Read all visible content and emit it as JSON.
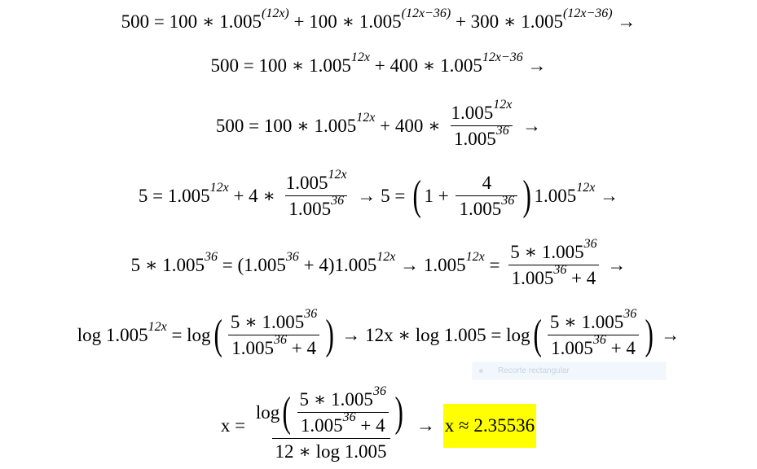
{
  "equations": [
    [
      {
        "t": "500 = 100 ∗ 1.005"
      },
      {
        "sup": "(12x)"
      },
      {
        "t": " + 100 ∗ 1.005"
      },
      {
        "sup": "(12x−36)"
      },
      {
        "t": " + 300 ∗ 1.005"
      },
      {
        "sup": "(12x−36)"
      },
      {
        "t": " →"
      }
    ],
    [
      {
        "t": "500 = 100 ∗ 1.005"
      },
      {
        "sup": "12x"
      },
      {
        "t": " + 400 ∗ 1.005"
      },
      {
        "sup": "12x−36"
      },
      {
        "t": " →"
      }
    ],
    [
      {
        "t": "500 = 100 ∗ 1.005"
      },
      {
        "sup": "12x"
      },
      {
        "t": " + 400 ∗ "
      },
      {
        "frac": {
          "num": [
            {
              "t": "1.005"
            },
            {
              "sup": "12x"
            }
          ],
          "den": [
            {
              "t": "1.005"
            },
            {
              "sup": "36"
            }
          ]
        }
      },
      {
        "t": " →"
      }
    ],
    [
      {
        "t": "5 = 1.005"
      },
      {
        "sup": "12x"
      },
      {
        "t": " + 4 ∗ "
      },
      {
        "frac": {
          "num": [
            {
              "t": "1.005"
            },
            {
              "sup": "12x"
            }
          ],
          "den": [
            {
              "t": "1.005"
            },
            {
              "sup": "36"
            }
          ]
        }
      },
      {
        "t": " → 5 = "
      },
      {
        "paren": [
          {
            "t": "1 + "
          },
          {
            "frac": {
              "num": [
                {
                  "t": "4"
                }
              ],
              "den": [
                {
                  "t": "1.005"
                },
                {
                  "sup": "36"
                }
              ]
            }
          }
        ]
      },
      {
        "t": "1.005"
      },
      {
        "sup": "12x"
      },
      {
        "t": " →"
      }
    ],
    [
      {
        "t": "5 ∗ 1.005"
      },
      {
        "sup": "36"
      },
      {
        "t": " = (1.005"
      },
      {
        "sup": "36"
      },
      {
        "t": " + 4)1.005"
      },
      {
        "sup": "12x"
      },
      {
        "t": " → 1.005"
      },
      {
        "sup": "12x"
      },
      {
        "t": " = "
      },
      {
        "frac": {
          "num": [
            {
              "t": "5 ∗ 1.005"
            },
            {
              "sup": "36"
            }
          ],
          "den": [
            {
              "t": "1.005"
            },
            {
              "sup": "36"
            },
            {
              "t": " + 4"
            }
          ]
        }
      },
      {
        "t": " →"
      }
    ],
    [
      {
        "t": "log 1.005"
      },
      {
        "sup": "12x"
      },
      {
        "t": " = log"
      },
      {
        "paren": [
          {
            "frac": {
              "num": [
                {
                  "t": "5 ∗ 1.005"
                },
                {
                  "sup": "36"
                }
              ],
              "den": [
                {
                  "t": "1.005"
                },
                {
                  "sup": "36"
                },
                {
                  "t": " + 4"
                }
              ]
            }
          }
        ]
      },
      {
        "t": " → 12x ∗ log 1.005 = log"
      },
      {
        "paren": [
          {
            "frac": {
              "num": [
                {
                  "t": "5 ∗ 1.005"
                },
                {
                  "sup": "36"
                }
              ],
              "den": [
                {
                  "t": "1.005"
                },
                {
                  "sup": "36"
                },
                {
                  "t": " + 4"
                }
              ]
            }
          }
        ]
      },
      {
        "t": " →"
      }
    ],
    [
      {
        "t": "x = "
      },
      {
        "frac": {
          "num": [
            {
              "t": "log"
            },
            {
              "paren": [
                {
                  "frac": {
                    "num": [
                      {
                        "t": "5 ∗ 1.005"
                      },
                      {
                        "sup": "36"
                      }
                    ],
                    "den": [
                      {
                        "t": "1.005"
                      },
                      {
                        "sup": "36"
                      },
                      {
                        "t": " + 4"
                      }
                    ]
                  }
                }
              ]
            }
          ],
          "den": [
            {
              "t": "12 ∗ log 1.005"
            }
          ]
        }
      },
      {
        "t": " → "
      },
      {
        "hl": [
          {
            "t": "x ≈ 2.35536"
          }
        ]
      }
    ]
  ],
  "highlight_color": "#ffff00",
  "tooltip": {
    "label": "Recorte rectangular"
  }
}
